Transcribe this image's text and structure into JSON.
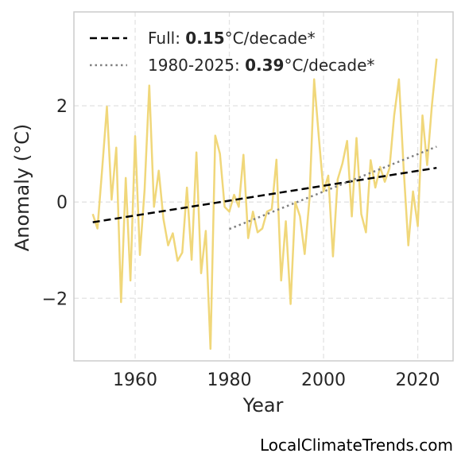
{
  "chart_data": {
    "type": "line",
    "xlabel": "Year",
    "ylabel": "Anomaly (°C)",
    "xlim": [
      1947,
      2027.5
    ],
    "ylim": [
      -3.3,
      3.95
    ],
    "xticks": [
      1960,
      1980,
      2000,
      2020
    ],
    "yticks": [
      -2,
      0,
      2
    ],
    "ytick_labels": [
      "−2",
      "0",
      "2"
    ],
    "grid": true,
    "legend_placement": "top-left",
    "series": [
      {
        "style": "solid",
        "color": "#f0d77a",
        "x": [
          1951,
          1952,
          1953,
          1954,
          1955,
          1956,
          1957,
          1958,
          1959,
          1960,
          1961,
          1962,
          1963,
          1964,
          1965,
          1966,
          1967,
          1968,
          1969,
          1970,
          1971,
          1972,
          1973,
          1974,
          1975,
          1976,
          1977,
          1978,
          1979,
          1980,
          1981,
          1982,
          1983,
          1984,
          1985,
          1986,
          1987,
          1988,
          1989,
          1990,
          1991,
          1992,
          1993,
          1994,
          1995,
          1996,
          1997,
          1998,
          1999,
          2000,
          2001,
          2002,
          2003,
          2004,
          2005,
          2006,
          2007,
          2008,
          2009,
          2010,
          2011,
          2012,
          2013,
          2014,
          2015,
          2016,
          2017,
          2018,
          2019,
          2020,
          2021,
          2022,
          2023,
          2024
        ],
        "y": [
          -0.25,
          -0.55,
          0.7,
          1.98,
          0.05,
          1.13,
          -2.08,
          0.5,
          -1.63,
          1.37,
          -1.1,
          0.25,
          2.42,
          -0.1,
          0.65,
          -0.35,
          -0.9,
          -0.65,
          -1.22,
          -1.05,
          0.3,
          -1.2,
          1.03,
          -1.48,
          -0.6,
          -3.05,
          1.38,
          1.0,
          -0.1,
          -0.2,
          0.15,
          -0.1,
          0.98,
          -0.75,
          -0.2,
          -0.63,
          -0.55,
          -0.2,
          -0.15,
          0.88,
          -1.63,
          -0.4,
          -2.12,
          0.0,
          -0.3,
          -1.08,
          0.05,
          2.55,
          1.35,
          0.22,
          0.55,
          -1.13,
          0.47,
          0.8,
          1.27,
          -0.3,
          1.33,
          -0.25,
          -0.63,
          0.87,
          0.3,
          0.73,
          0.42,
          0.7,
          1.8,
          2.55,
          0.7,
          -0.9,
          0.22,
          -0.5,
          1.8,
          0.77,
          2.0,
          2.98
        ]
      },
      {
        "name": "Full: 0.15°C/decade*",
        "style": "dashed",
        "color": "#000000",
        "x": [
          1951,
          2024
        ],
        "y": [
          -0.42,
          0.71
        ]
      },
      {
        "name": "1980-2025: 0.39°C/decade*",
        "style": "dotted",
        "color": "#808080",
        "x": [
          1980,
          2024
        ],
        "y": [
          -0.56,
          1.15
        ]
      }
    ],
    "legend": [
      {
        "prefix": "Full: ",
        "bold": "0.15",
        "suffix": "°C/decade*",
        "style": "dashed",
        "color": "#000000"
      },
      {
        "prefix": "1980-2025: ",
        "bold": "0.39",
        "suffix": "°C/decade*",
        "style": "dotted",
        "color": "#808080"
      }
    ]
  },
  "watermark": "LocalClimateTrends.com"
}
